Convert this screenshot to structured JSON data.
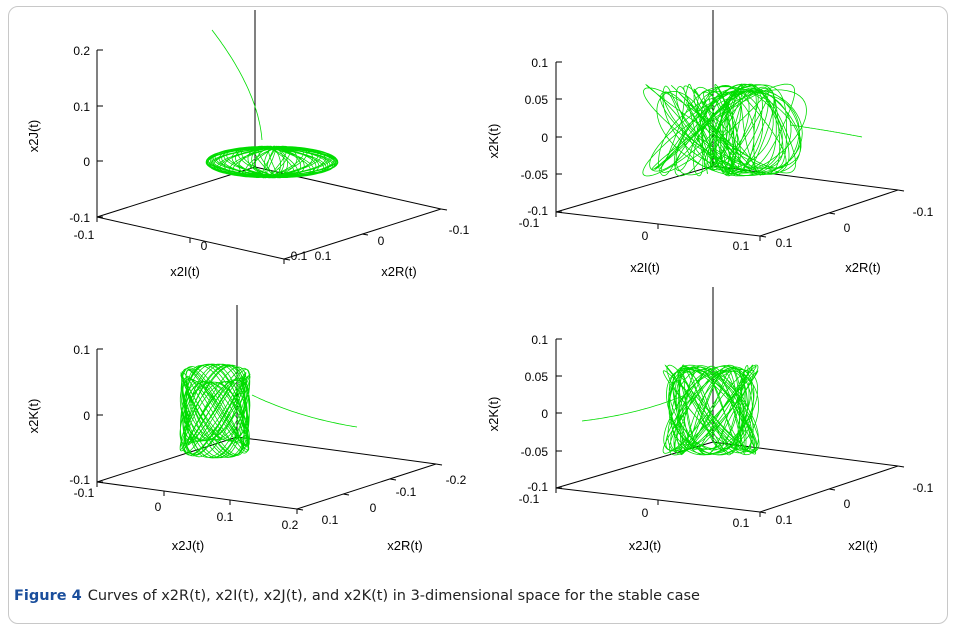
{
  "caption": {
    "label": "Figure 4",
    "text": "Curves of x2R(t), x2I(t), x2J(t), and x2K(t) in 3-dimensional space for the stable case"
  },
  "line_color": "#00dd00",
  "chart_data": [
    {
      "type": "line3d",
      "xlabel": "x2I(t)",
      "ylabel": "x2R(t)",
      "zlabel": "x2J(t)",
      "xticks": [
        "-0.1",
        "0",
        "0.1"
      ],
      "yticks": [
        "0.1",
        "0",
        "-0.1"
      ],
      "zticks": [
        "-0.1",
        "0",
        "0.1",
        "0.2"
      ],
      "attractor": "flat ellipse near z = 0",
      "transient_start": [
        -0.1,
        0.1,
        0.2
      ]
    },
    {
      "type": "line3d",
      "xlabel": "x2I(t)",
      "ylabel": "x2R(t)",
      "zlabel": "x2K(t)",
      "xticks": [
        "-0.1",
        "0",
        "0.1"
      ],
      "yticks": [
        "0.1",
        "0",
        "-0.1"
      ],
      "zticks": [
        "-0.1",
        "-0.05",
        "0",
        "0.05",
        "0.1"
      ],
      "attractor": "dense box-shaped cloud",
      "transient_start": [
        0.1,
        -0.1,
        0.0
      ]
    },
    {
      "type": "line3d",
      "xlabel": "x2J(t)",
      "ylabel": "x2R(t)",
      "zlabel": "x2K(t)",
      "xticks": [
        "-0.1",
        "0",
        "0.1",
        "0.2"
      ],
      "yticks": [
        "0.1",
        "0",
        "-0.1",
        "-0.2"
      ],
      "zticks": [
        "-0.1",
        "0",
        "0.1"
      ],
      "attractor": "narrow vertical cylinder",
      "transient_start": [
        0.2,
        -0.1,
        -0.01
      ]
    },
    {
      "type": "line3d",
      "xlabel": "x2J(t)",
      "ylabel": "x2I(t)",
      "zlabel": "x2K(t)",
      "xticks": [
        "-0.1",
        "0",
        "0.1"
      ],
      "yticks": [
        "0.1",
        "0",
        "-0.1"
      ],
      "zticks": [
        "-0.1",
        "-0.05",
        "0",
        "0.05",
        "0.1"
      ],
      "attractor": "dense box-shaped cloud",
      "transient_start": [
        -0.1,
        0.1,
        -0.01
      ]
    }
  ]
}
